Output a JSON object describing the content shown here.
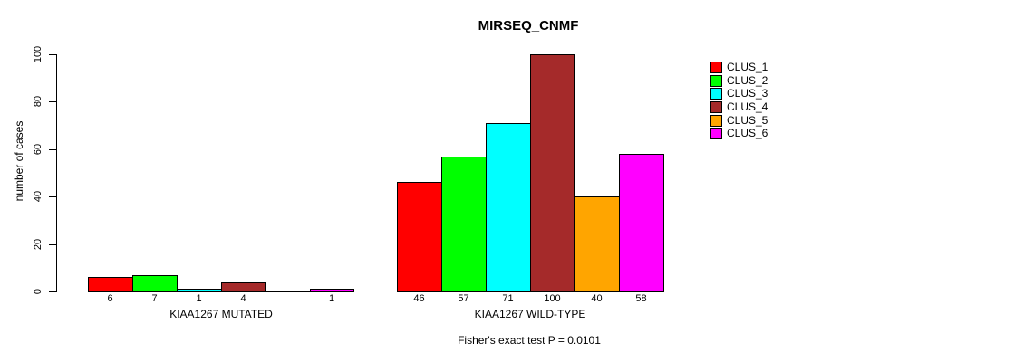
{
  "chart_data": {
    "type": "bar",
    "title": "MIRSEQ_CNMF",
    "ylabel": "number of cases",
    "xlabel": "",
    "ylim": [
      0,
      100
    ],
    "yticks": [
      0,
      20,
      40,
      60,
      80,
      100
    ],
    "grid": false,
    "legend_position": "right",
    "series_labels": [
      "CLUS_1",
      "CLUS_2",
      "CLUS_3",
      "CLUS_4",
      "CLUS_5",
      "CLUS_6"
    ],
    "series_colors": [
      "#FF0000",
      "#00FF00",
      "#00FFFF",
      "#A52A2A",
      "#FFA500",
      "#FF00FF"
    ],
    "groups": [
      {
        "label": "KIAA1267 MUTATED",
        "values": [
          6,
          7,
          1,
          4,
          0,
          1
        ],
        "bar_labels": [
          "6",
          "7",
          "1",
          "4",
          "",
          "1"
        ]
      },
      {
        "label": "KIAA1267 WILD-TYPE",
        "values": [
          46,
          57,
          71,
          100,
          40,
          58
        ],
        "bar_labels": [
          "46",
          "57",
          "71",
          "100",
          "40",
          "58"
        ]
      }
    ],
    "annotation": "Fisher's exact test P = 0.0101"
  }
}
